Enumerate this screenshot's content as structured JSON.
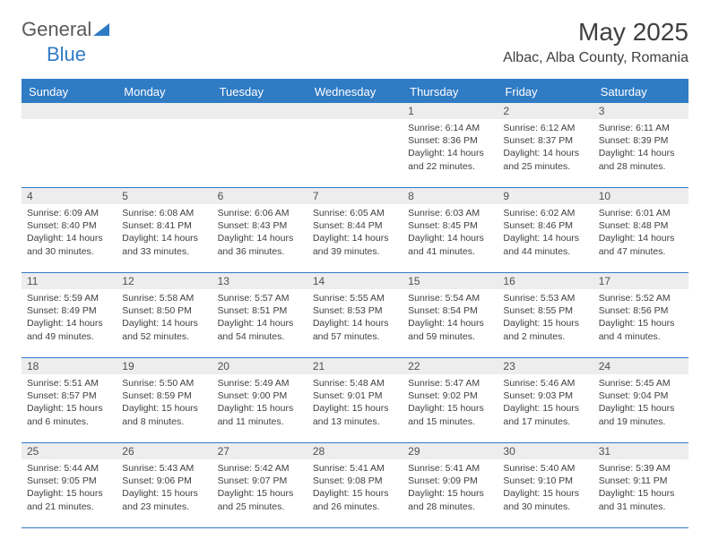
{
  "brand": {
    "part1": "General",
    "part2": "Blue"
  },
  "title": "May 2025",
  "location": "Albac, Alba County, Romania",
  "colors": {
    "brand_gray": "#5a5a5a",
    "brand_blue": "#2f7bc4",
    "header_bg": "#2f7bc4",
    "header_fg": "#ffffff",
    "daynum_bg": "#ededed",
    "text": "#404040",
    "rule": "#2f7bc4",
    "background": "#ffffff"
  },
  "typography": {
    "month_title_pt": 28,
    "location_pt": 16,
    "dow_pt": 13,
    "daynum_pt": 12,
    "body_pt": 10.5,
    "font_family": "Arial"
  },
  "dow": [
    "Sunday",
    "Monday",
    "Tuesday",
    "Wednesday",
    "Thursday",
    "Friday",
    "Saturday"
  ],
  "weeks": [
    [
      null,
      null,
      null,
      null,
      {
        "n": "1",
        "sr": "6:14 AM",
        "ss": "8:36 PM",
        "dl": "14 hours and 22 minutes."
      },
      {
        "n": "2",
        "sr": "6:12 AM",
        "ss": "8:37 PM",
        "dl": "14 hours and 25 minutes."
      },
      {
        "n": "3",
        "sr": "6:11 AM",
        "ss": "8:39 PM",
        "dl": "14 hours and 28 minutes."
      }
    ],
    [
      {
        "n": "4",
        "sr": "6:09 AM",
        "ss": "8:40 PM",
        "dl": "14 hours and 30 minutes."
      },
      {
        "n": "5",
        "sr": "6:08 AM",
        "ss": "8:41 PM",
        "dl": "14 hours and 33 minutes."
      },
      {
        "n": "6",
        "sr": "6:06 AM",
        "ss": "8:43 PM",
        "dl": "14 hours and 36 minutes."
      },
      {
        "n": "7",
        "sr": "6:05 AM",
        "ss": "8:44 PM",
        "dl": "14 hours and 39 minutes."
      },
      {
        "n": "8",
        "sr": "6:03 AM",
        "ss": "8:45 PM",
        "dl": "14 hours and 41 minutes."
      },
      {
        "n": "9",
        "sr": "6:02 AM",
        "ss": "8:46 PM",
        "dl": "14 hours and 44 minutes."
      },
      {
        "n": "10",
        "sr": "6:01 AM",
        "ss": "8:48 PM",
        "dl": "14 hours and 47 minutes."
      }
    ],
    [
      {
        "n": "11",
        "sr": "5:59 AM",
        "ss": "8:49 PM",
        "dl": "14 hours and 49 minutes."
      },
      {
        "n": "12",
        "sr": "5:58 AM",
        "ss": "8:50 PM",
        "dl": "14 hours and 52 minutes."
      },
      {
        "n": "13",
        "sr": "5:57 AM",
        "ss": "8:51 PM",
        "dl": "14 hours and 54 minutes."
      },
      {
        "n": "14",
        "sr": "5:55 AM",
        "ss": "8:53 PM",
        "dl": "14 hours and 57 minutes."
      },
      {
        "n": "15",
        "sr": "5:54 AM",
        "ss": "8:54 PM",
        "dl": "14 hours and 59 minutes."
      },
      {
        "n": "16",
        "sr": "5:53 AM",
        "ss": "8:55 PM",
        "dl": "15 hours and 2 minutes."
      },
      {
        "n": "17",
        "sr": "5:52 AM",
        "ss": "8:56 PM",
        "dl": "15 hours and 4 minutes."
      }
    ],
    [
      {
        "n": "18",
        "sr": "5:51 AM",
        "ss": "8:57 PM",
        "dl": "15 hours and 6 minutes."
      },
      {
        "n": "19",
        "sr": "5:50 AM",
        "ss": "8:59 PM",
        "dl": "15 hours and 8 minutes."
      },
      {
        "n": "20",
        "sr": "5:49 AM",
        "ss": "9:00 PM",
        "dl": "15 hours and 11 minutes."
      },
      {
        "n": "21",
        "sr": "5:48 AM",
        "ss": "9:01 PM",
        "dl": "15 hours and 13 minutes."
      },
      {
        "n": "22",
        "sr": "5:47 AM",
        "ss": "9:02 PM",
        "dl": "15 hours and 15 minutes."
      },
      {
        "n": "23",
        "sr": "5:46 AM",
        "ss": "9:03 PM",
        "dl": "15 hours and 17 minutes."
      },
      {
        "n": "24",
        "sr": "5:45 AM",
        "ss": "9:04 PM",
        "dl": "15 hours and 19 minutes."
      }
    ],
    [
      {
        "n": "25",
        "sr": "5:44 AM",
        "ss": "9:05 PM",
        "dl": "15 hours and 21 minutes."
      },
      {
        "n": "26",
        "sr": "5:43 AM",
        "ss": "9:06 PM",
        "dl": "15 hours and 23 minutes."
      },
      {
        "n": "27",
        "sr": "5:42 AM",
        "ss": "9:07 PM",
        "dl": "15 hours and 25 minutes."
      },
      {
        "n": "28",
        "sr": "5:41 AM",
        "ss": "9:08 PM",
        "dl": "15 hours and 26 minutes."
      },
      {
        "n": "29",
        "sr": "5:41 AM",
        "ss": "9:09 PM",
        "dl": "15 hours and 28 minutes."
      },
      {
        "n": "30",
        "sr": "5:40 AM",
        "ss": "9:10 PM",
        "dl": "15 hours and 30 minutes."
      },
      {
        "n": "31",
        "sr": "5:39 AM",
        "ss": "9:11 PM",
        "dl": "15 hours and 31 minutes."
      }
    ]
  ],
  "labels": {
    "sunrise": "Sunrise: ",
    "sunset": "Sunset: ",
    "daylight": "Daylight: "
  }
}
